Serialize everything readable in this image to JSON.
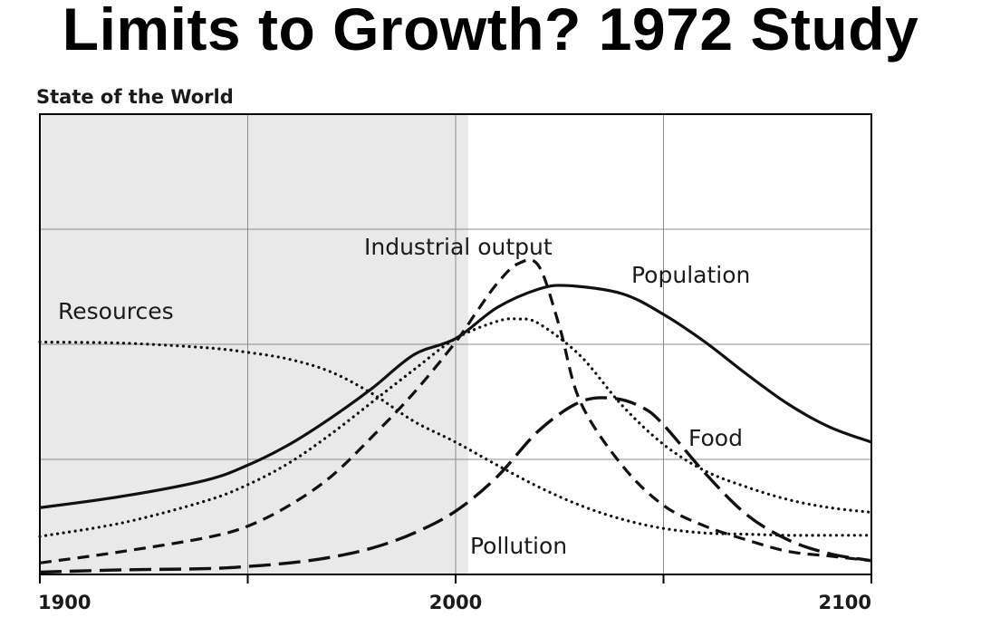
{
  "title": "Limits to Growth? 1972 Study",
  "chart_data": {
    "type": "line",
    "title": "State of the World",
    "xlabel": "",
    "ylabel": "",
    "xlim": [
      1900,
      2100
    ],
    "ylim": [
      0,
      4
    ],
    "x_ticks": [
      1900,
      1950,
      2000,
      2050,
      2100
    ],
    "x_tick_labels": [
      "1900",
      "2000",
      "2100"
    ],
    "y_ticks": [
      0,
      1,
      2,
      3,
      4
    ],
    "grid": true,
    "historical_shading": [
      1900,
      2003
    ],
    "series": [
      {
        "name": "Population",
        "style": "solid",
        "x": [
          1900,
          1920,
          1940,
          1950,
          1960,
          1970,
          1980,
          1990,
          2000,
          2010,
          2020,
          2027,
          2040,
          2050,
          2060,
          2070,
          2080,
          2090,
          2100
        ],
        "y": [
          0.58,
          0.68,
          0.82,
          0.95,
          1.13,
          1.36,
          1.62,
          1.91,
          2.05,
          2.32,
          2.48,
          2.51,
          2.44,
          2.26,
          2.02,
          1.74,
          1.48,
          1.28,
          1.15
        ]
      },
      {
        "name": "Industrial output",
        "style": "dashed",
        "x": [
          1900,
          1920,
          1940,
          1950,
          1960,
          1970,
          1980,
          1990,
          2000,
          2005,
          2010,
          2015,
          2020,
          2025,
          2030,
          2040,
          2050,
          2060,
          2070,
          2080,
          2090,
          2100
        ],
        "y": [
          0.1,
          0.2,
          0.32,
          0.42,
          0.6,
          0.85,
          1.2,
          1.58,
          2.02,
          2.28,
          2.53,
          2.7,
          2.68,
          2.15,
          1.5,
          0.95,
          0.6,
          0.42,
          0.3,
          0.2,
          0.16,
          0.12
        ]
      },
      {
        "name": "Food",
        "style": "dotted",
        "x": [
          1900,
          1920,
          1940,
          1950,
          1960,
          1970,
          1980,
          1990,
          2000,
          2010,
          2015,
          2020,
          2030,
          2040,
          2050,
          2060,
          2070,
          2080,
          2090,
          2100
        ],
        "y": [
          0.33,
          0.45,
          0.64,
          0.78,
          0.97,
          1.22,
          1.5,
          1.78,
          2.05,
          2.2,
          2.22,
          2.18,
          1.9,
          1.47,
          1.13,
          0.9,
          0.76,
          0.65,
          0.58,
          0.54
        ]
      },
      {
        "name": "Resources",
        "style": "dotted",
        "x": [
          1900,
          1920,
          1940,
          1950,
          1960,
          1970,
          1980,
          1990,
          2000,
          2010,
          2020,
          2030,
          2040,
          2050,
          2060,
          2070,
          2080,
          2090,
          2100
        ],
        "y": [
          2.02,
          2.01,
          1.97,
          1.93,
          1.87,
          1.76,
          1.57,
          1.33,
          1.15,
          0.95,
          0.76,
          0.6,
          0.48,
          0.4,
          0.36,
          0.35,
          0.34,
          0.34,
          0.34
        ]
      },
      {
        "name": "Pollution",
        "style": "long-dashed",
        "x": [
          1900,
          1920,
          1940,
          1950,
          1960,
          1970,
          1980,
          1990,
          2000,
          2010,
          2020,
          2030,
          2038,
          2045,
          2050,
          2060,
          2070,
          2080,
          2090,
          2100
        ],
        "y": [
          0.02,
          0.04,
          0.05,
          0.07,
          0.1,
          0.15,
          0.23,
          0.36,
          0.55,
          0.85,
          1.25,
          1.5,
          1.53,
          1.45,
          1.3,
          0.88,
          0.52,
          0.3,
          0.18,
          0.12
        ]
      }
    ]
  }
}
